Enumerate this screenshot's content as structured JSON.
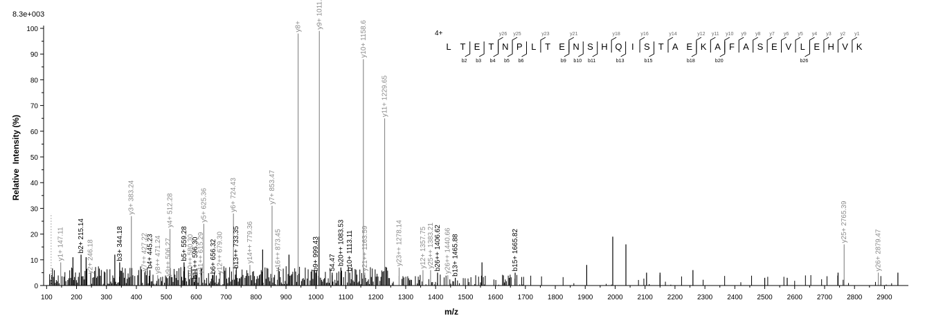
{
  "chart_data": {
    "type": "bar",
    "title": "",
    "ymax_label": "8.3e+003",
    "xlabel": "m/z",
    "ylabel": "Relative  Intensity (%)",
    "xlim": [
      90,
      2980
    ],
    "ylim": [
      0,
      100
    ],
    "xticks": [
      100,
      200,
      300,
      400,
      500,
      600,
      700,
      800,
      900,
      1000,
      1100,
      1200,
      1300,
      1400,
      1500,
      1600,
      1700,
      1800,
      1900,
      2000,
      2100,
      2200,
      2300,
      2400,
      2500,
      2600,
      2700,
      2800,
      2900
    ],
    "yticks": [
      0,
      10,
      20,
      30,
      40,
      50,
      60,
      70,
      80,
      90,
      100
    ],
    "labeled_peaks": [
      {
        "x": 115,
        "y": 28,
        "text": "",
        "ion": "y"
      },
      {
        "x": 147.11,
        "y": 9,
        "text": "y1+ 147.11",
        "ion": "y"
      },
      {
        "x": 215.14,
        "y": 12,
        "text": "b2+ 215.14",
        "ion": "b"
      },
      {
        "x": 246.18,
        "y": 4,
        "text": "y2+ 246.18",
        "ion": "y"
      },
      {
        "x": 344.18,
        "y": 9,
        "text": "b3+ 344.18",
        "ion": "b"
      },
      {
        "x": 383.24,
        "y": 27,
        "text": "y3+ 383.24",
        "ion": "y"
      },
      {
        "x": 427.22,
        "y": 5,
        "text": "y7++ 427.22",
        "ion": "y"
      },
      {
        "x": 445.23,
        "y": 6,
        "text": "b4+ 445.23",
        "ion": "b"
      },
      {
        "x": 471.24,
        "y": 4,
        "text": "y8++ 471.24",
        "ion": "y"
      },
      {
        "x": 506.27,
        "y": 3,
        "text": "y9++ 506.27",
        "ion": "y"
      },
      {
        "x": 512.28,
        "y": 22,
        "text": "y4+ 512.28",
        "ion": "y"
      },
      {
        "x": 559.28,
        "y": 9,
        "text": "b5+ 559.28",
        "ion": "b"
      },
      {
        "x": 580.3,
        "y": 3,
        "text": "y10++ 580.30",
        "ion": "y"
      },
      {
        "x": 596.3,
        "y": 2,
        "text": "b11++ 596.30",
        "ion": "b"
      },
      {
        "x": 615.29,
        "y": 4,
        "text": "y11++ 615.29",
        "ion": "y"
      },
      {
        "x": 625.36,
        "y": 24,
        "text": "y5+ 625.36",
        "ion": "y"
      },
      {
        "x": 656.32,
        "y": 4,
        "text": "b6+ 656.32",
        "ion": "b"
      },
      {
        "x": 679.3,
        "y": 4,
        "text": "y12++ 679.30",
        "ion": "y"
      },
      {
        "x": 724.43,
        "y": 28,
        "text": "y6+ 724.43",
        "ion": "y"
      },
      {
        "x": 733.35,
        "y": 6,
        "text": "b13++ 733.35",
        "ion": "b"
      },
      {
        "x": 779.36,
        "y": 8,
        "text": "y14++ 779.36",
        "ion": "y"
      },
      {
        "x": 853.47,
        "y": 31,
        "text": "y7+ 853.47",
        "ion": "y"
      },
      {
        "x": 873.45,
        "y": 5,
        "text": "y16++ 873.45",
        "ion": "y"
      },
      {
        "x": 940.5,
        "y": 98,
        "text": "y8+",
        "ion": "y"
      },
      {
        "x": 999.43,
        "y": 5,
        "text": "b9+ 999.43",
        "ion": "b"
      },
      {
        "x": 1011.5,
        "y": 99,
        "text": "y9+ 1011.5",
        "ion": "y"
      },
      {
        "x": 1054.47,
        "y": 5,
        "text": "54.47",
        "ion": "b"
      },
      {
        "x": 1083.53,
        "y": 7,
        "text": "b20++ 1083.53",
        "ion": "b"
      },
      {
        "x": 1113.11,
        "y": 5,
        "text": "b10+ 1113.11",
        "ion": "b"
      },
      {
        "x": 1158.6,
        "y": 88,
        "text": "y10+ 1158.6",
        "ion": "y"
      },
      {
        "x": 1163.59,
        "y": 5,
        "text": "y21++ 1163.59",
        "ion": "y"
      },
      {
        "x": 1229.65,
        "y": 65,
        "text": "y11+ 1229.65",
        "ion": "y"
      },
      {
        "x": 1278.14,
        "y": 7,
        "text": "y23++ 1278.14",
        "ion": "y"
      },
      {
        "x": 1357.75,
        "y": 6,
        "text": "y12+ 1357.75",
        "ion": "y"
      },
      {
        "x": 1383.21,
        "y": 6,
        "text": "y25++ 1383.21",
        "ion": "y"
      },
      {
        "x": 1406.62,
        "y": 5,
        "text": "b26++ 1406.62",
        "ion": "b"
      },
      {
        "x": 1440.66,
        "y": 4,
        "text": "y26++ 1440.66",
        "ion": "y"
      },
      {
        "x": 1465.88,
        "y": 3,
        "text": "b13+ 1465.88",
        "ion": "b"
      },
      {
        "x": 1665.82,
        "y": 5,
        "text": "b15+ 1665.82",
        "ion": "b"
      },
      {
        "x": 2765.39,
        "y": 16,
        "text": "y25+ 2765.39",
        "ion": "y"
      },
      {
        "x": 2879.47,
        "y": 5,
        "text": "y26+ 2879.47",
        "ion": "y"
      }
    ],
    "major_unlabeled_peaks": [
      {
        "x": 1992,
        "y": 19
      },
      {
        "x": 2036,
        "y": 16
      },
      {
        "x": 1010,
        "y": 19
      },
      {
        "x": 910,
        "y": 12
      },
      {
        "x": 822,
        "y": 14
      },
      {
        "x": 328,
        "y": 12
      },
      {
        "x": 188,
        "y": 11
      },
      {
        "x": 232,
        "y": 11
      },
      {
        "x": 1555,
        "y": 9
      },
      {
        "x": 1905,
        "y": 8
      },
      {
        "x": 2745,
        "y": 5
      },
      {
        "x": 2945,
        "y": 5
      },
      {
        "x": 2500,
        "y": 3
      },
      {
        "x": 2575,
        "y": 3
      },
      {
        "x": 2260,
        "y": 6
      },
      {
        "x": 2150,
        "y": 5
      },
      {
        "x": 2105,
        "y": 5
      }
    ],
    "sequence": {
      "charge": "4+",
      "residues": [
        "L",
        "T",
        "E",
        "T",
        "N",
        "P",
        "L",
        "T",
        "E",
        "N",
        "S",
        "H",
        "Q",
        "I",
        "S",
        "T",
        "A",
        "E",
        "K",
        "A",
        "F",
        "A",
        "S",
        "E",
        "V",
        "L",
        "E",
        "H",
        "V",
        "K"
      ],
      "b_ions": [
        {
          "after": 2,
          "label": "b2"
        },
        {
          "after": 3,
          "label": "b3"
        },
        {
          "after": 4,
          "label": "b4"
        },
        {
          "after": 5,
          "label": "b5"
        },
        {
          "after": 6,
          "label": "b6"
        },
        {
          "after": 9,
          "label": "b9"
        },
        {
          "after": 10,
          "label": "b10"
        },
        {
          "after": 11,
          "label": "b11"
        },
        {
          "after": 13,
          "label": "b13"
        },
        {
          "after": 15,
          "label": "b15"
        },
        {
          "after": 18,
          "label": "b18"
        },
        {
          "after": 20,
          "label": "b20"
        },
        {
          "after": 26,
          "label": "b26"
        }
      ],
      "y_ions": [
        {
          "before": 4,
          "label": "y26"
        },
        {
          "before": 5,
          "label": "y25"
        },
        {
          "before": 7,
          "label": "y23"
        },
        {
          "before": 9,
          "label": "y21"
        },
        {
          "before": 12,
          "label": "y18"
        },
        {
          "before": 14,
          "label": "y16"
        },
        {
          "before": 16,
          "label": "y14"
        },
        {
          "before": 18,
          "label": "y12"
        },
        {
          "before": 19,
          "label": "y11"
        },
        {
          "before": 20,
          "label": "y10"
        },
        {
          "before": 21,
          "label": "y9"
        },
        {
          "before": 22,
          "label": "y8"
        },
        {
          "before": 23,
          "label": "y7"
        },
        {
          "before": 24,
          "label": "y6"
        },
        {
          "before": 25,
          "label": "y5"
        },
        {
          "before": 26,
          "label": "y4"
        },
        {
          "before": 27,
          "label": "y3"
        },
        {
          "before": 28,
          "label": "y2"
        },
        {
          "before": 29,
          "label": "y1"
        }
      ]
    },
    "colors": {
      "y_ion": "#8c8c8c",
      "b_ion": "#000000",
      "noise": "#000000",
      "axis": "#000000"
    }
  }
}
